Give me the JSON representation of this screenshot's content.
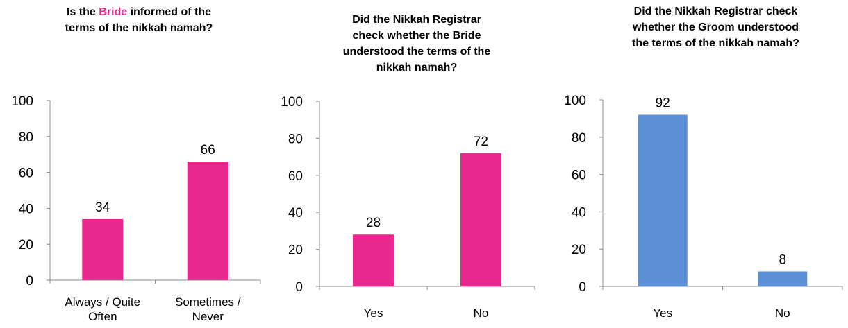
{
  "chart_data": [
    {
      "type": "bar",
      "title_parts": [
        "Is the ",
        "Bride",
        " informed of the",
        "terms of the nikkah namah?"
      ],
      "categories": [
        [
          "Always / Quite",
          "Often"
        ],
        [
          "Sometimes /",
          "Never"
        ]
      ],
      "values": [
        34,
        66
      ],
      "ylim": [
        0,
        100
      ],
      "yticks": [
        0,
        20,
        40,
        60,
        80,
        100
      ],
      "color": "#e8288e",
      "grid": false
    },
    {
      "type": "bar",
      "title_lines": [
        "Did the Nikkah Registrar",
        "check whether the Bride",
        "understood the terms of the",
        "nikkah namah?"
      ],
      "categories": [
        [
          "Yes"
        ],
        [
          "No"
        ]
      ],
      "values": [
        28,
        72
      ],
      "ylim": [
        0,
        100
      ],
      "yticks": [
        0,
        20,
        40,
        60,
        80,
        100
      ],
      "color": "#e8288e",
      "grid": false
    },
    {
      "type": "bar",
      "title_lines": [
        "Did the Nikkah Registrar check",
        "whether the Groom understood",
        "the terms of the nikkah namah?"
      ],
      "categories": [
        [
          "Yes"
        ],
        [
          "No"
        ]
      ],
      "values": [
        92,
        8
      ],
      "ylim": [
        0,
        100
      ],
      "yticks": [
        0,
        20,
        40,
        60,
        80,
        100
      ],
      "color": "#5b8fd6",
      "grid": false
    }
  ]
}
